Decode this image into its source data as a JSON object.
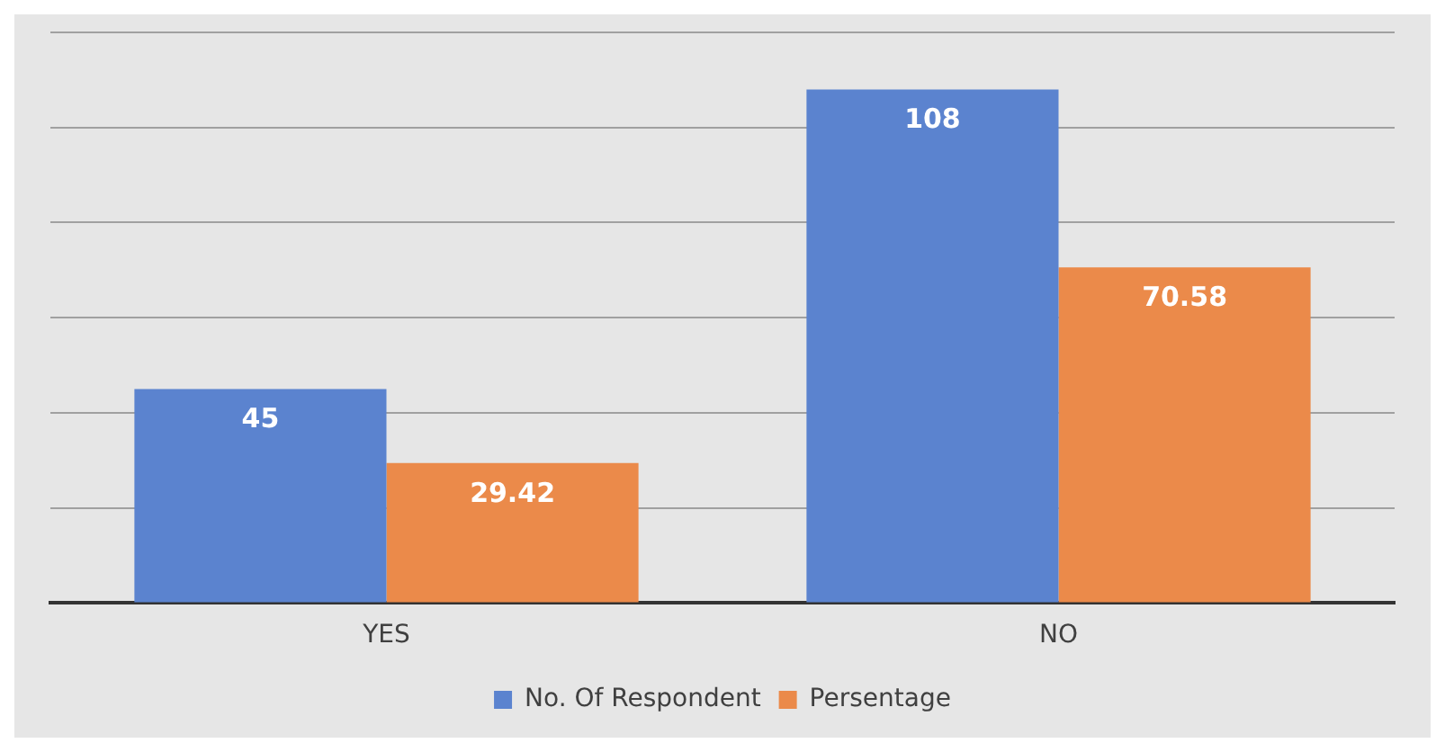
{
  "chart_data": {
    "type": "bar",
    "categories": [
      "YES",
      "NO"
    ],
    "series": [
      {
        "name": "No. Of Respondent",
        "color": "#5b83cf",
        "values": [
          45,
          108
        ]
      },
      {
        "name": "Persentage",
        "color": "#eb8a4a",
        "values": [
          29.42,
          70.58
        ]
      }
    ],
    "ylim": [
      0,
      120
    ],
    "yticks": [
      {
        "value": 0,
        "label": null
      },
      {
        "value": 20,
        "label": null
      },
      {
        "value": 40,
        "label": null
      },
      {
        "value": 60,
        "label": null
      },
      {
        "value": 80,
        "label": null
      },
      {
        "value": 100,
        "label": null
      },
      {
        "value": 120,
        "label": null
      }
    ],
    "tick_labels": "x",
    "grid": "y",
    "legend": "bottom",
    "data_labels": true
  }
}
